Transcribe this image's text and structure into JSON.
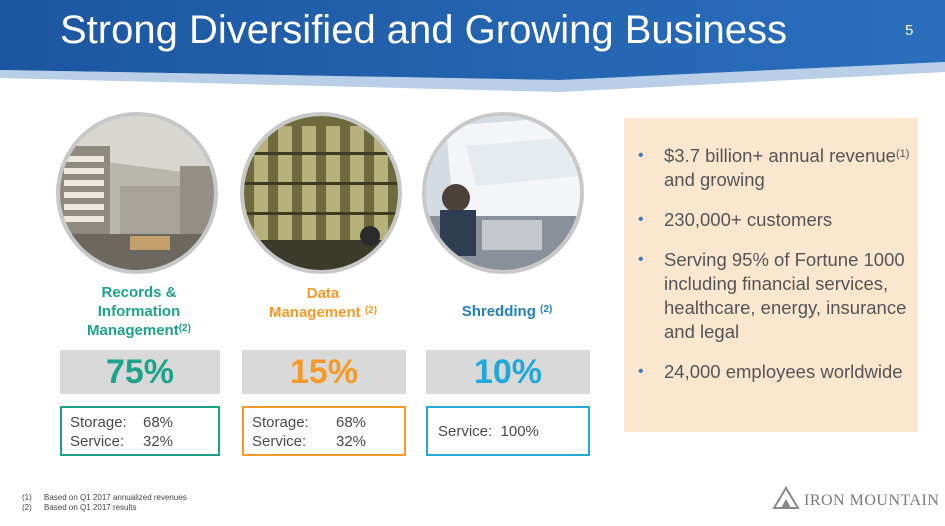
{
  "header": {
    "title": "Strong Diversified and Growing Business",
    "page_number": "5"
  },
  "segments": [
    {
      "label_lines": [
        "Records &",
        "Information",
        "Management"
      ],
      "note": "(2)",
      "percent": "75%",
      "split": [
        {
          "label": "Storage:",
          "value": "68%"
        },
        {
          "label": "Service:",
          "value": "32%"
        }
      ],
      "color": "#1ea38a"
    },
    {
      "label_lines": [
        "Data",
        "Management"
      ],
      "note": "(2)",
      "percent": "15%",
      "split": [
        {
          "label": "Storage:",
          "value": "68%"
        },
        {
          "label": "Service:",
          "value": "32%"
        }
      ],
      "color": "#f39a2a"
    },
    {
      "label_lines": [
        "Shredding"
      ],
      "note": "(2)",
      "percent": "10%",
      "split": [
        {
          "label": "Service:",
          "value": "100%"
        }
      ],
      "color": "#20a8d8"
    }
  ],
  "highlights": {
    "bullet": "•",
    "items": [
      {
        "text_a": "$3.7 billion+ annual revenue",
        "sup": "(1)",
        "text_b": " and growing"
      },
      {
        "text_a": "230,000+ customers"
      },
      {
        "text_a": "Serving 95% of Fortune 1000 including financial services, healthcare, energy, insurance and legal"
      },
      {
        "text_a": "24,000 employees worldwide"
      }
    ]
  },
  "footnotes": [
    {
      "num": "(1)",
      "text": "Based on Q1 2017 annualized revenues"
    },
    {
      "num": "(2)",
      "text": "Based on Q1 2017 results"
    }
  ],
  "logo": {
    "text": "IRON MOUNTAIN",
    "icon": "mountain-icon"
  },
  "colors": {
    "header_blue": "#1f5ea8",
    "panel_bg": "#fbe7cf",
    "bullet_blue": "#3c7fc1"
  }
}
